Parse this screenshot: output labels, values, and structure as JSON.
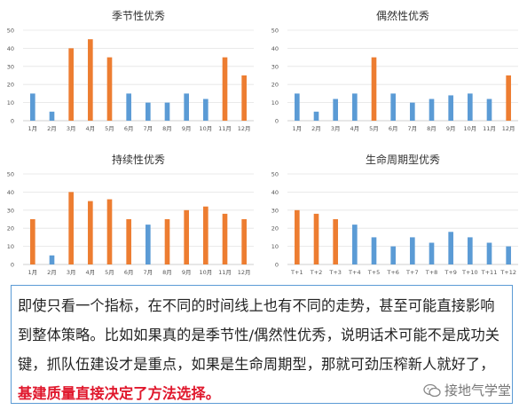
{
  "colors": {
    "normal": "#5b9bd5",
    "highlight": "#ed7d31"
  },
  "chart_data": [
    {
      "type": "bar",
      "title": "季节性优秀",
      "categories": [
        "1月",
        "2月",
        "3月",
        "4月",
        "5月",
        "6月",
        "7月",
        "8月",
        "9月",
        "10月",
        "11月",
        "12月"
      ],
      "values": [
        15,
        5,
        40,
        45,
        35,
        15,
        10,
        10,
        15,
        12,
        35,
        25
      ],
      "highlight": [
        false,
        false,
        true,
        true,
        true,
        false,
        false,
        false,
        false,
        false,
        true,
        true
      ],
      "ylim": [
        0,
        50
      ],
      "yticks": [
        "0",
        "10",
        "20",
        "30",
        "40",
        "50"
      ],
      "grid": true
    },
    {
      "type": "bar",
      "title": "偶然性优秀",
      "categories": [
        "1月",
        "2月",
        "3月",
        "4月",
        "5月",
        "6月",
        "7月",
        "8月",
        "9月",
        "10月",
        "11月",
        "12月"
      ],
      "values": [
        15,
        5,
        12,
        15,
        35,
        15,
        10,
        12,
        14,
        15,
        12,
        25
      ],
      "highlight": [
        false,
        false,
        false,
        false,
        true,
        false,
        false,
        false,
        false,
        false,
        false,
        true
      ],
      "ylim": [
        0,
        50
      ],
      "yticks": [
        "0",
        "10",
        "20",
        "30",
        "40",
        "50"
      ],
      "grid": true
    },
    {
      "type": "bar",
      "title": "持续性优秀",
      "categories": [
        "1月",
        "2月",
        "3月",
        "4月",
        "5月",
        "6月",
        "7月",
        "8月",
        "9月",
        "10月",
        "11月",
        "12月"
      ],
      "values": [
        25,
        5,
        40,
        35,
        36,
        25,
        22,
        25,
        30,
        32,
        28,
        25
      ],
      "highlight": [
        true,
        false,
        true,
        true,
        true,
        true,
        false,
        true,
        true,
        true,
        true,
        true
      ],
      "ylim": [
        0,
        50
      ],
      "yticks": [
        "0",
        "10",
        "20",
        "30",
        "40",
        "50"
      ],
      "grid": true
    },
    {
      "type": "bar",
      "title": "生命周期型优秀",
      "categories": [
        "T+1",
        "T+2",
        "T+3",
        "T+4",
        "T+5",
        "T+6",
        "T+7",
        "T+8",
        "T+9",
        "T+10",
        "T+11",
        "T+12"
      ],
      "values": [
        30,
        28,
        25,
        22,
        15,
        10,
        15,
        12,
        18,
        15,
        12,
        10
      ],
      "highlight": [
        true,
        true,
        true,
        false,
        false,
        false,
        false,
        false,
        false,
        false,
        false,
        false
      ],
      "ylim": [
        0,
        50
      ],
      "yticks": [
        "0",
        "10",
        "20",
        "30",
        "40",
        "50"
      ],
      "grid": true
    }
  ],
  "note": {
    "text": "即使只看一个指标，在不同的时间线上也有不同的走势，甚至可能直接影响到整体策略。比如如果真的是季节性/偶然性优秀，说明话术可能不是成功关键，抓队伍建设才是重点，如果是生命周期型，那就可劲压榨新人就好了，",
    "highlight": "基建质量直接决定了方法选择。"
  },
  "watermark": {
    "text": "接地气学堂",
    "icon": "wechat-bubble-icon"
  }
}
